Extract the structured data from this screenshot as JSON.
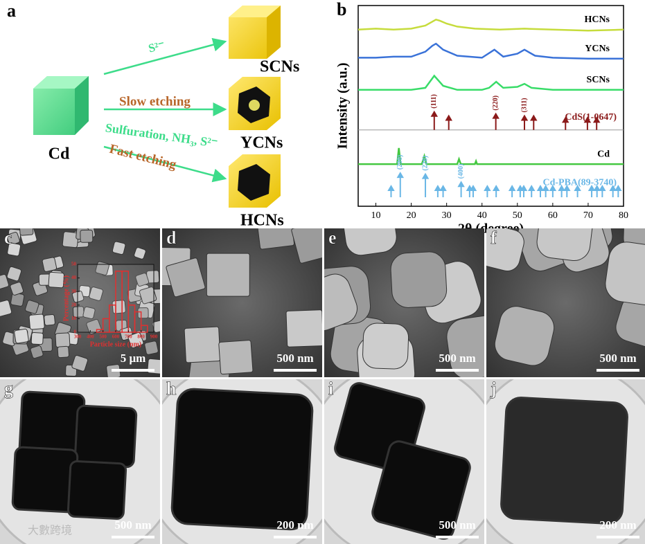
{
  "panel_a": {
    "label": "a",
    "start": "Cd",
    "arrows": [
      {
        "label": "S²⁻"
      },
      {
        "label": "Slow etching"
      },
      {
        "label": "Sulfuration, NH₃, S²⁻"
      },
      {
        "label": "Fast etching"
      }
    ],
    "products": [
      "SCNs",
      "YCNs",
      "HCNs"
    ]
  },
  "chart_data": [
    {
      "type": "line",
      "label": "b",
      "xlabel": "2θ (degree)",
      "ylabel": "Intensity (a.u.)",
      "xlim": [
        5,
        80
      ],
      "xticks": [
        10,
        20,
        30,
        40,
        50,
        60,
        70,
        80
      ],
      "ylim": [
        0,
        100
      ],
      "series": [
        {
          "name": "HCNs",
          "color": "#c6dc3c",
          "x": [
            5,
            10,
            15,
            20,
            24,
            26,
            27,
            28,
            30,
            33,
            38,
            45,
            52,
            60,
            70,
            80
          ],
          "values": [
            88,
            88.5,
            88,
            88.5,
            90,
            92,
            93,
            92.5,
            91,
            89.5,
            88.5,
            88,
            88.5,
            88,
            87.5,
            88
          ]
        },
        {
          "name": "YCNs",
          "color": "#3a72d8",
          "x": [
            5,
            10,
            15,
            20,
            24,
            26,
            27,
            29,
            33,
            40,
            43.5,
            46,
            50,
            52,
            55,
            60,
            70,
            80
          ],
          "values": [
            74,
            74,
            74.5,
            74.5,
            77,
            80,
            81,
            78,
            75,
            74,
            78,
            74.5,
            76,
            78,
            75,
            74,
            73.5,
            73.5
          ]
        },
        {
          "name": "SCNs",
          "color": "#38dc68",
          "x": [
            5,
            10,
            15,
            20,
            24,
            26.5,
            29,
            33,
            40,
            42,
            44,
            46,
            50,
            52,
            54,
            60,
            70,
            80
          ],
          "values": [
            58,
            58,
            58,
            58,
            59,
            65,
            60,
            58,
            58,
            59,
            62,
            59,
            59.5,
            61,
            59,
            58,
            58,
            58
          ]
        },
        {
          "name": "Cd",
          "color": "#44c840",
          "x": [
            5,
            10,
            16,
            16.5,
            17,
            23,
            23.7,
            24.3,
            28,
            33,
            33.5,
            34,
            38,
            38.3,
            38.6,
            50,
            70,
            80
          ],
          "values": [
            21,
            21,
            21,
            29,
            21,
            21,
            25,
            21,
            21,
            21,
            23.5,
            21,
            21,
            22.5,
            21,
            21,
            21,
            21
          ]
        }
      ],
      "references": [
        {
          "name": "CdS(1-0647)",
          "color": "#8b1a1a",
          "baseline": 38,
          "x": [
            26.5,
            30.6,
            43.9,
            52,
            54.6,
            63.6,
            69.8,
            72.4
          ],
          "values": [
            47,
            45,
            46,
            45,
            45,
            44,
            44,
            44
          ]
        },
        {
          "name": "Cd-PBA(89-3740)",
          "color": "#6ab7e6",
          "baseline": 4.5,
          "x": [
            14.3,
            16.9,
            24,
            27.5,
            29,
            34.1,
            36.5,
            37.5,
            41.5,
            44,
            48.5,
            50.8,
            51.8,
            54,
            56.5,
            58,
            60,
            62.5,
            64,
            67,
            71,
            72.5,
            74,
            77,
            78.5
          ],
          "values": [
            10,
            16.5,
            16,
            10,
            10,
            12,
            10,
            10,
            10,
            10,
            10,
            10,
            10,
            10,
            10,
            10,
            10,
            10,
            10,
            10,
            10,
            10,
            10,
            10,
            10
          ]
        }
      ],
      "annotations": [
        {
          "text": "(111)",
          "x": 26.5,
          "reference": 0
        },
        {
          "text": "(220)",
          "x": 43.9,
          "reference": 0
        },
        {
          "text": "(311)",
          "x": 52,
          "reference": 0
        },
        {
          "text": "(200)",
          "x": 16.9,
          "reference": 1
        },
        {
          "text": "(220)",
          "x": 24,
          "reference": 1
        },
        {
          "text": "(400)",
          "x": 34.1,
          "reference": 1
        }
      ]
    },
    {
      "type": "histogram",
      "xlabel": "Particle size (nm)",
      "ylabel": "Percentage (%)",
      "color": "#e03030",
      "bins": [
        300,
        350,
        400,
        450,
        500,
        550,
        600,
        650,
        700,
        750,
        800,
        850,
        900
      ],
      "values": [
        0,
        0,
        0,
        2,
        10,
        20,
        45,
        45,
        20,
        15,
        5,
        0
      ],
      "xlim": [
        300,
        900
      ],
      "xticks": [
        300,
        400,
        500,
        600,
        700,
        800,
        900
      ],
      "ylim": [
        0,
        50
      ],
      "yticks": [
        0,
        10,
        20,
        30,
        40,
        50
      ]
    }
  ],
  "images": [
    {
      "label": "c",
      "scale_bar": "5 μm",
      "kind": "sem"
    },
    {
      "label": "d",
      "scale_bar": "500 nm",
      "kind": "sem"
    },
    {
      "label": "e",
      "scale_bar": "500 nm",
      "kind": "sem"
    },
    {
      "label": "f",
      "scale_bar": "500 nm",
      "kind": "sem"
    },
    {
      "label": "g",
      "scale_bar": "500 nm",
      "kind": "tem"
    },
    {
      "label": "h",
      "scale_bar": "200 nm",
      "kind": "tem"
    },
    {
      "label": "i",
      "scale_bar": "500 nm",
      "kind": "tem"
    },
    {
      "label": "j",
      "scale_bar": "200 nm",
      "kind": "tem"
    }
  ],
  "watermark": "大數跨境"
}
